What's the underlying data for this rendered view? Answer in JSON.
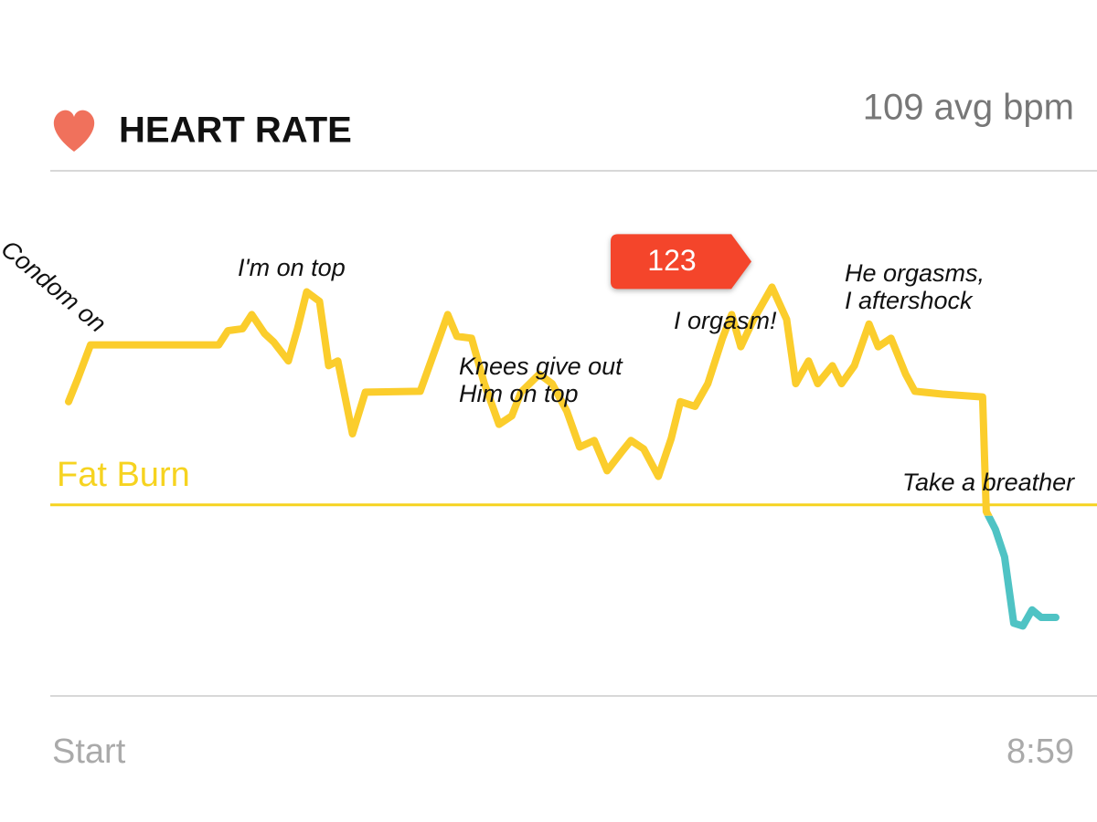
{
  "chart_data": {
    "type": "line",
    "title": "HEART RATE",
    "subtitle": "109 avg bpm",
    "x": [
      0,
      5,
      12,
      82,
      87,
      95,
      100,
      107,
      112,
      120,
      125,
      130,
      137,
      142,
      147,
      155,
      162,
      192,
      197,
      207,
      212,
      220,
      227,
      235,
      242,
      247,
      257,
      264,
      272,
      279,
      287,
      294,
      302,
      307,
      314,
      322,
      329,
      334,
      342,
      349,
      357,
      362,
      367,
      374,
      384,
      392,
      397,
      404,
      409,
      417,
      422,
      429,
      437,
      442,
      449,
      457,
      462,
      477,
      499,
      501,
      506,
      511,
      516,
      521,
      526,
      531,
      539
    ],
    "values": [
      110.9,
      113.3,
      116.9,
      116.9,
      118.4,
      118.6,
      120.1,
      118.1,
      117.2,
      115.2,
      118.6,
      122.5,
      121.5,
      114.7,
      115.2,
      107.5,
      111.9,
      112.0,
      114.7,
      120.1,
      117.8,
      117.6,
      112.8,
      108.5,
      109.4,
      111.9,
      113.8,
      112.8,
      109.9,
      106.1,
      106.8,
      103.6,
      105.6,
      106.8,
      105.9,
      103.0,
      107.0,
      110.9,
      110.4,
      112.8,
      117.6,
      120.1,
      116.7,
      119.6,
      123,
      119.6,
      112.8,
      115.2,
      112.8,
      114.7,
      112.8,
      114.7,
      119.1,
      116.7,
      117.6,
      113.8,
      112.0,
      111.7,
      111.4,
      99.3,
      97.4,
      94.5,
      87.5,
      87.2,
      88.9,
      88.1,
      88.1
    ],
    "color": "#fbcd2c",
    "below_color": "#4fc3c4",
    "xlim": [
      0,
      539
    ],
    "xticks": [
      {
        "value": 0,
        "label": "Start"
      },
      {
        "value": 539,
        "label": "8:59"
      }
    ],
    "ylim": [
      80,
      135
    ],
    "zones": [
      {
        "label": "Fat Burn",
        "value": 100,
        "color": "#f6d320"
      }
    ],
    "callout": 123,
    "callout_color": "#f4452b",
    "annotations": [
      [
        "Condom on"
      ],
      [
        "I'm on top"
      ],
      [
        "Knees give out",
        "Him on top"
      ],
      [
        "I orgasm!"
      ],
      [
        "He orgasms,",
        "I aftershock"
      ],
      [
        "Take a breather"
      ]
    ]
  }
}
